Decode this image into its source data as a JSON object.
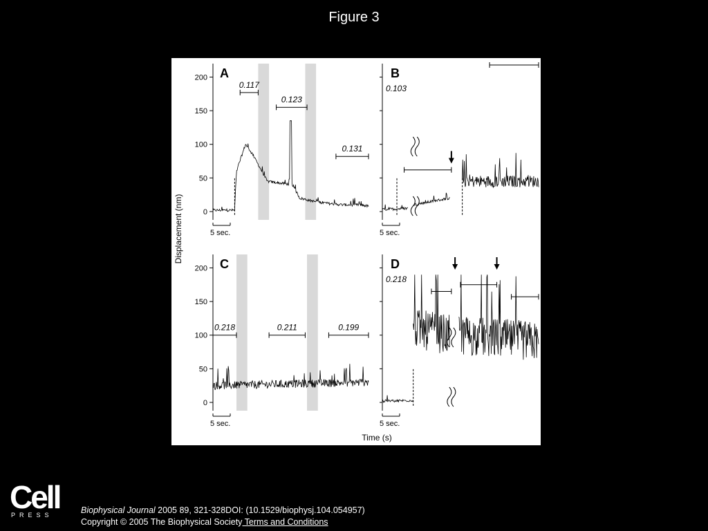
{
  "slide": {
    "title": "Figure 3"
  },
  "footer": {
    "journal": "Biophysical Journal",
    "citation": " 2005 89, 321-328DOI: (10.1529/biophysj.104.054957)",
    "copyright": "Copyright © 2005 The Biophysical Society",
    "terms_link": " Terms and Conditions",
    "logo_word": "Cell",
    "logo_sub": "PRESS"
  },
  "chart_data": {
    "type": "line",
    "ylabel": "Displacement (nm)",
    "xlabel": "Time (s)",
    "ylim": [
      0,
      200
    ],
    "yticks": [
      0,
      50,
      100,
      150,
      200
    ],
    "scale_bar_label": "5 sec.",
    "panels": [
      {
        "label": "A",
        "segments": [
          {
            "x": [
              0,
              12,
              13,
              18,
              22,
              30,
              38,
              44,
              48,
              56,
              64,
              72,
              82,
              86
            ],
            "y": [
              2,
              2,
              60,
              100,
              85,
              45,
              42,
              40,
              20,
              15,
              12,
              10,
              10,
              8
            ]
          }
        ],
        "rate_labels": [
          {
            "text": "0.117",
            "x": [
              15,
              25
            ]
          },
          {
            "text": "0.123",
            "x": [
              35,
              52
            ]
          },
          {
            "text": "0.131",
            "x": [
              68,
              86
            ]
          }
        ],
        "peaks": [
          {
            "x": 43,
            "y": 135
          }
        ],
        "shaded_regions": [
          [
            25,
            31
          ],
          [
            51,
            57
          ]
        ],
        "dashed_markers": [
          12
        ]
      },
      {
        "label": "B",
        "rate_labels": [
          {
            "text": "0.103",
            "x": null
          }
        ],
        "segments": [
          {
            "x": [
              0,
              14
            ],
            "y": [
              3,
              5
            ]
          },
          {
            "x": [
              17,
              37
            ],
            "y": [
              10,
              20
            ]
          },
          {
            "x": [
              44,
              86
            ],
            "y": [
              45,
              45
            ]
          }
        ],
        "arrows": [
          38
        ],
        "dashed_markers": [
          8,
          44
        ],
        "breaks": [
          18
        ],
        "brackets": [
          [
            12,
            38
          ],
          [
            59,
            86
          ]
        ]
      },
      {
        "label": "C",
        "segments": [
          {
            "x": [
              0,
              86
            ],
            "y": [
              25,
              30
            ]
          }
        ],
        "rate_labels": [
          {
            "text": "0.218",
            "x": [
              0,
              13
            ]
          },
          {
            "text": "0.211",
            "x": [
              31,
              51
            ]
          },
          {
            "text": "0.199",
            "x": [
              64,
              86
            ]
          }
        ],
        "shaded_regions": [
          [
            13,
            19
          ],
          [
            52,
            58
          ]
        ]
      },
      {
        "label": "D",
        "rate_labels": [
          {
            "text": "0.218",
            "x": null
          }
        ],
        "segments": [
          {
            "x": [
              0,
              17
            ],
            "y": [
              2,
              3
            ]
          },
          {
            "x": [
              17,
              37
            ],
            "y": [
              110,
              100
            ]
          },
          {
            "x": [
              42,
              86
            ],
            "y": [
              100,
              90
            ]
          }
        ],
        "arrows": [
          40,
          63
        ],
        "dashed_markers": [
          17
        ],
        "breaks": [
          38
        ],
        "brackets": [
          [
            27,
            38
          ],
          [
            43,
            63
          ],
          [
            71,
            86
          ]
        ]
      }
    ]
  }
}
